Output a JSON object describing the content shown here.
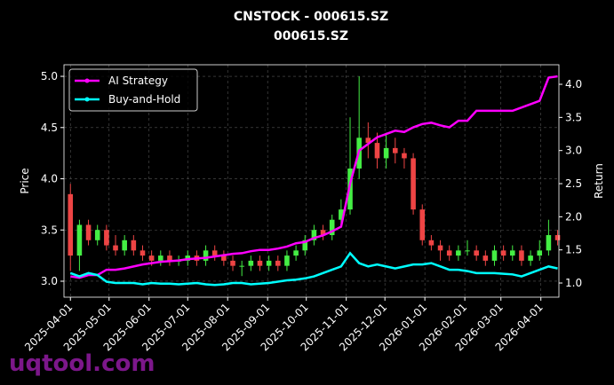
{
  "chart_data": {
    "type": "candlestick",
    "title": "CNSTOCK - 000615.SZ",
    "subtitle": "000615.SZ",
    "y_label": "Price",
    "y2_label": "Return",
    "watermark": "uqtool.com",
    "grid": true,
    "legend": "upper left",
    "up_color": "#44ee44",
    "down_color": "#ee4444",
    "xlim": [
      "2025-03-27",
      "2026-04-15"
    ],
    "xticks": [
      "2025-04-01",
      "2025-05-01",
      "2025-06-01",
      "2025-07-01",
      "2025-08-01",
      "2025-09-01",
      "2025-10-01",
      "2025-11-01",
      "2025-12-01",
      "2026-01-01",
      "2026-02-01",
      "2026-03-01",
      "2026-04-01"
    ],
    "ylim": [
      2.844,
      5.113
    ],
    "yticks": [
      {
        "value": 3,
        "label": "3.0"
      },
      {
        "value": 3.5,
        "label": "3.5"
      },
      {
        "value": 4,
        "label": "4.0"
      },
      {
        "value": 4.5,
        "label": "4.5"
      },
      {
        "value": 5,
        "label": "5.0"
      }
    ],
    "y2lim": [
      0.786,
      4.295
    ],
    "y2ticks": [
      {
        "value": 1,
        "label": "1.0"
      },
      {
        "value": 1.5,
        "label": "1.5"
      },
      {
        "value": 2,
        "label": "2.0"
      },
      {
        "value": 2.5,
        "label": "2.5"
      },
      {
        "value": 3,
        "label": "3.0"
      },
      {
        "value": 3.5,
        "label": "3.5"
      },
      {
        "value": 4,
        "label": "4.0"
      }
    ],
    "x": [
      "2025-04-01",
      "2025-04-08",
      "2025-04-15",
      "2025-04-22",
      "2025-04-29",
      "2025-05-06",
      "2025-05-13",
      "2025-05-20",
      "2025-05-27",
      "2025-06-03",
      "2025-06-10",
      "2025-06-17",
      "2025-06-24",
      "2025-07-01",
      "2025-07-08",
      "2025-07-15",
      "2025-07-22",
      "2025-07-29",
      "2025-08-05",
      "2025-08-12",
      "2025-08-19",
      "2025-08-26",
      "2025-09-02",
      "2025-09-09",
      "2025-09-16",
      "2025-09-23",
      "2025-09-30",
      "2025-10-07",
      "2025-10-14",
      "2025-10-21",
      "2025-10-28",
      "2025-11-04",
      "2025-11-11",
      "2025-11-18",
      "2025-11-25",
      "2025-12-02",
      "2025-12-09",
      "2025-12-16",
      "2025-12-23",
      "2025-12-30",
      "2026-01-06",
      "2026-01-13",
      "2026-01-20",
      "2026-01-27",
      "2026-02-03",
      "2026-02-10",
      "2026-02-17",
      "2026-02-24",
      "2026-03-03",
      "2026-03-10",
      "2026-03-17",
      "2026-03-24",
      "2026-03-31",
      "2026-04-07",
      "2026-04-14"
    ],
    "open": [
      3.85,
      3.25,
      3.55,
      3.4,
      3.5,
      3.35,
      3.3,
      3.4,
      3.3,
      3.25,
      3.2,
      3.25,
      3.2,
      3.2,
      3.25,
      3.2,
      3.3,
      3.25,
      3.2,
      3.15,
      3.15,
      3.2,
      3.15,
      3.2,
      3.15,
      3.25,
      3.3,
      3.4,
      3.5,
      3.45,
      3.6,
      3.7,
      4.1,
      4.4,
      4.35,
      4.2,
      4.3,
      4.25,
      4.2,
      3.7,
      3.4,
      3.35,
      3.3,
      3.25,
      3.3,
      3.3,
      3.25,
      3.2,
      3.3,
      3.25,
      3.3,
      3.2,
      3.25,
      3.3,
      3.45
    ],
    "high": [
      3.95,
      3.6,
      3.6,
      3.55,
      3.55,
      3.45,
      3.45,
      3.45,
      3.35,
      3.3,
      3.3,
      3.3,
      3.25,
      3.3,
      3.3,
      3.35,
      3.35,
      3.3,
      3.25,
      3.2,
      3.25,
      3.25,
      3.25,
      3.25,
      3.3,
      3.35,
      3.45,
      3.55,
      3.55,
      3.65,
      3.8,
      4.6,
      5.0,
      4.55,
      4.45,
      4.45,
      4.4,
      4.3,
      4.25,
      3.75,
      3.45,
      3.4,
      3.35,
      3.35,
      3.4,
      3.35,
      3.3,
      3.35,
      3.35,
      3.35,
      3.35,
      3.3,
      3.4,
      3.6,
      3.5
    ],
    "low": [
      3.1,
      3.1,
      3.35,
      3.35,
      3.3,
      3.25,
      3.25,
      3.25,
      3.2,
      3.15,
      3.15,
      3.15,
      3.15,
      3.15,
      3.15,
      3.15,
      3.2,
      3.15,
      3.1,
      3.05,
      3.1,
      3.1,
      3.1,
      3.1,
      3.1,
      3.2,
      3.25,
      3.35,
      3.4,
      3.4,
      3.55,
      3.65,
      4.0,
      4.2,
      4.1,
      4.1,
      4.15,
      4.1,
      3.65,
      3.35,
      3.3,
      3.2,
      3.2,
      3.2,
      3.25,
      3.2,
      3.15,
      3.15,
      3.2,
      3.2,
      3.15,
      3.15,
      3.2,
      3.25,
      3.35
    ],
    "close": [
      3.25,
      3.55,
      3.4,
      3.5,
      3.35,
      3.3,
      3.4,
      3.3,
      3.25,
      3.2,
      3.25,
      3.2,
      3.2,
      3.25,
      3.2,
      3.3,
      3.25,
      3.2,
      3.15,
      3.15,
      3.2,
      3.15,
      3.2,
      3.15,
      3.25,
      3.3,
      3.4,
      3.5,
      3.45,
      3.6,
      3.7,
      4.1,
      4.4,
      4.35,
      4.2,
      4.3,
      4.25,
      4.2,
      3.7,
      3.4,
      3.35,
      3.3,
      3.25,
      3.3,
      3.3,
      3.25,
      3.2,
      3.3,
      3.25,
      3.3,
      3.2,
      3.25,
      3.3,
      3.45,
      3.4
    ],
    "series": [
      {
        "name": "AI Strategy",
        "color": "#ff00ff",
        "axis": "y2",
        "values": [
          1.1,
          1.08,
          1.12,
          1.12,
          1.2,
          1.2,
          1.22,
          1.25,
          1.28,
          1.3,
          1.32,
          1.33,
          1.34,
          1.36,
          1.37,
          1.38,
          1.4,
          1.42,
          1.44,
          1.45,
          1.48,
          1.5,
          1.5,
          1.52,
          1.55,
          1.6,
          1.62,
          1.68,
          1.72,
          1.78,
          1.85,
          2.5,
          3.0,
          3.1,
          3.2,
          3.25,
          3.3,
          3.28,
          3.35,
          3.4,
          3.42,
          3.38,
          3.35,
          3.45,
          3.45,
          3.6,
          3.6,
          3.6,
          3.6,
          3.6,
          3.65,
          3.7,
          3.75,
          4.1,
          4.12
        ]
      },
      {
        "name": "Buy-and-Hold",
        "color": "#00ffff",
        "axis": "y2",
        "values": [
          1.15,
          1.1,
          1.15,
          1.12,
          1.02,
          1.0,
          1.0,
          1.0,
          0.98,
          1.0,
          0.99,
          0.99,
          0.98,
          0.99,
          1.0,
          0.98,
          0.97,
          0.98,
          1.0,
          1.0,
          0.98,
          0.99,
          1.0,
          1.02,
          1.04,
          1.05,
          1.07,
          1.1,
          1.15,
          1.2,
          1.25,
          1.45,
          1.3,
          1.25,
          1.28,
          1.25,
          1.22,
          1.25,
          1.28,
          1.28,
          1.3,
          1.25,
          1.2,
          1.2,
          1.18,
          1.15,
          1.15,
          1.15,
          1.14,
          1.13,
          1.1,
          1.15,
          1.2,
          1.25,
          1.22
        ]
      }
    ]
  }
}
